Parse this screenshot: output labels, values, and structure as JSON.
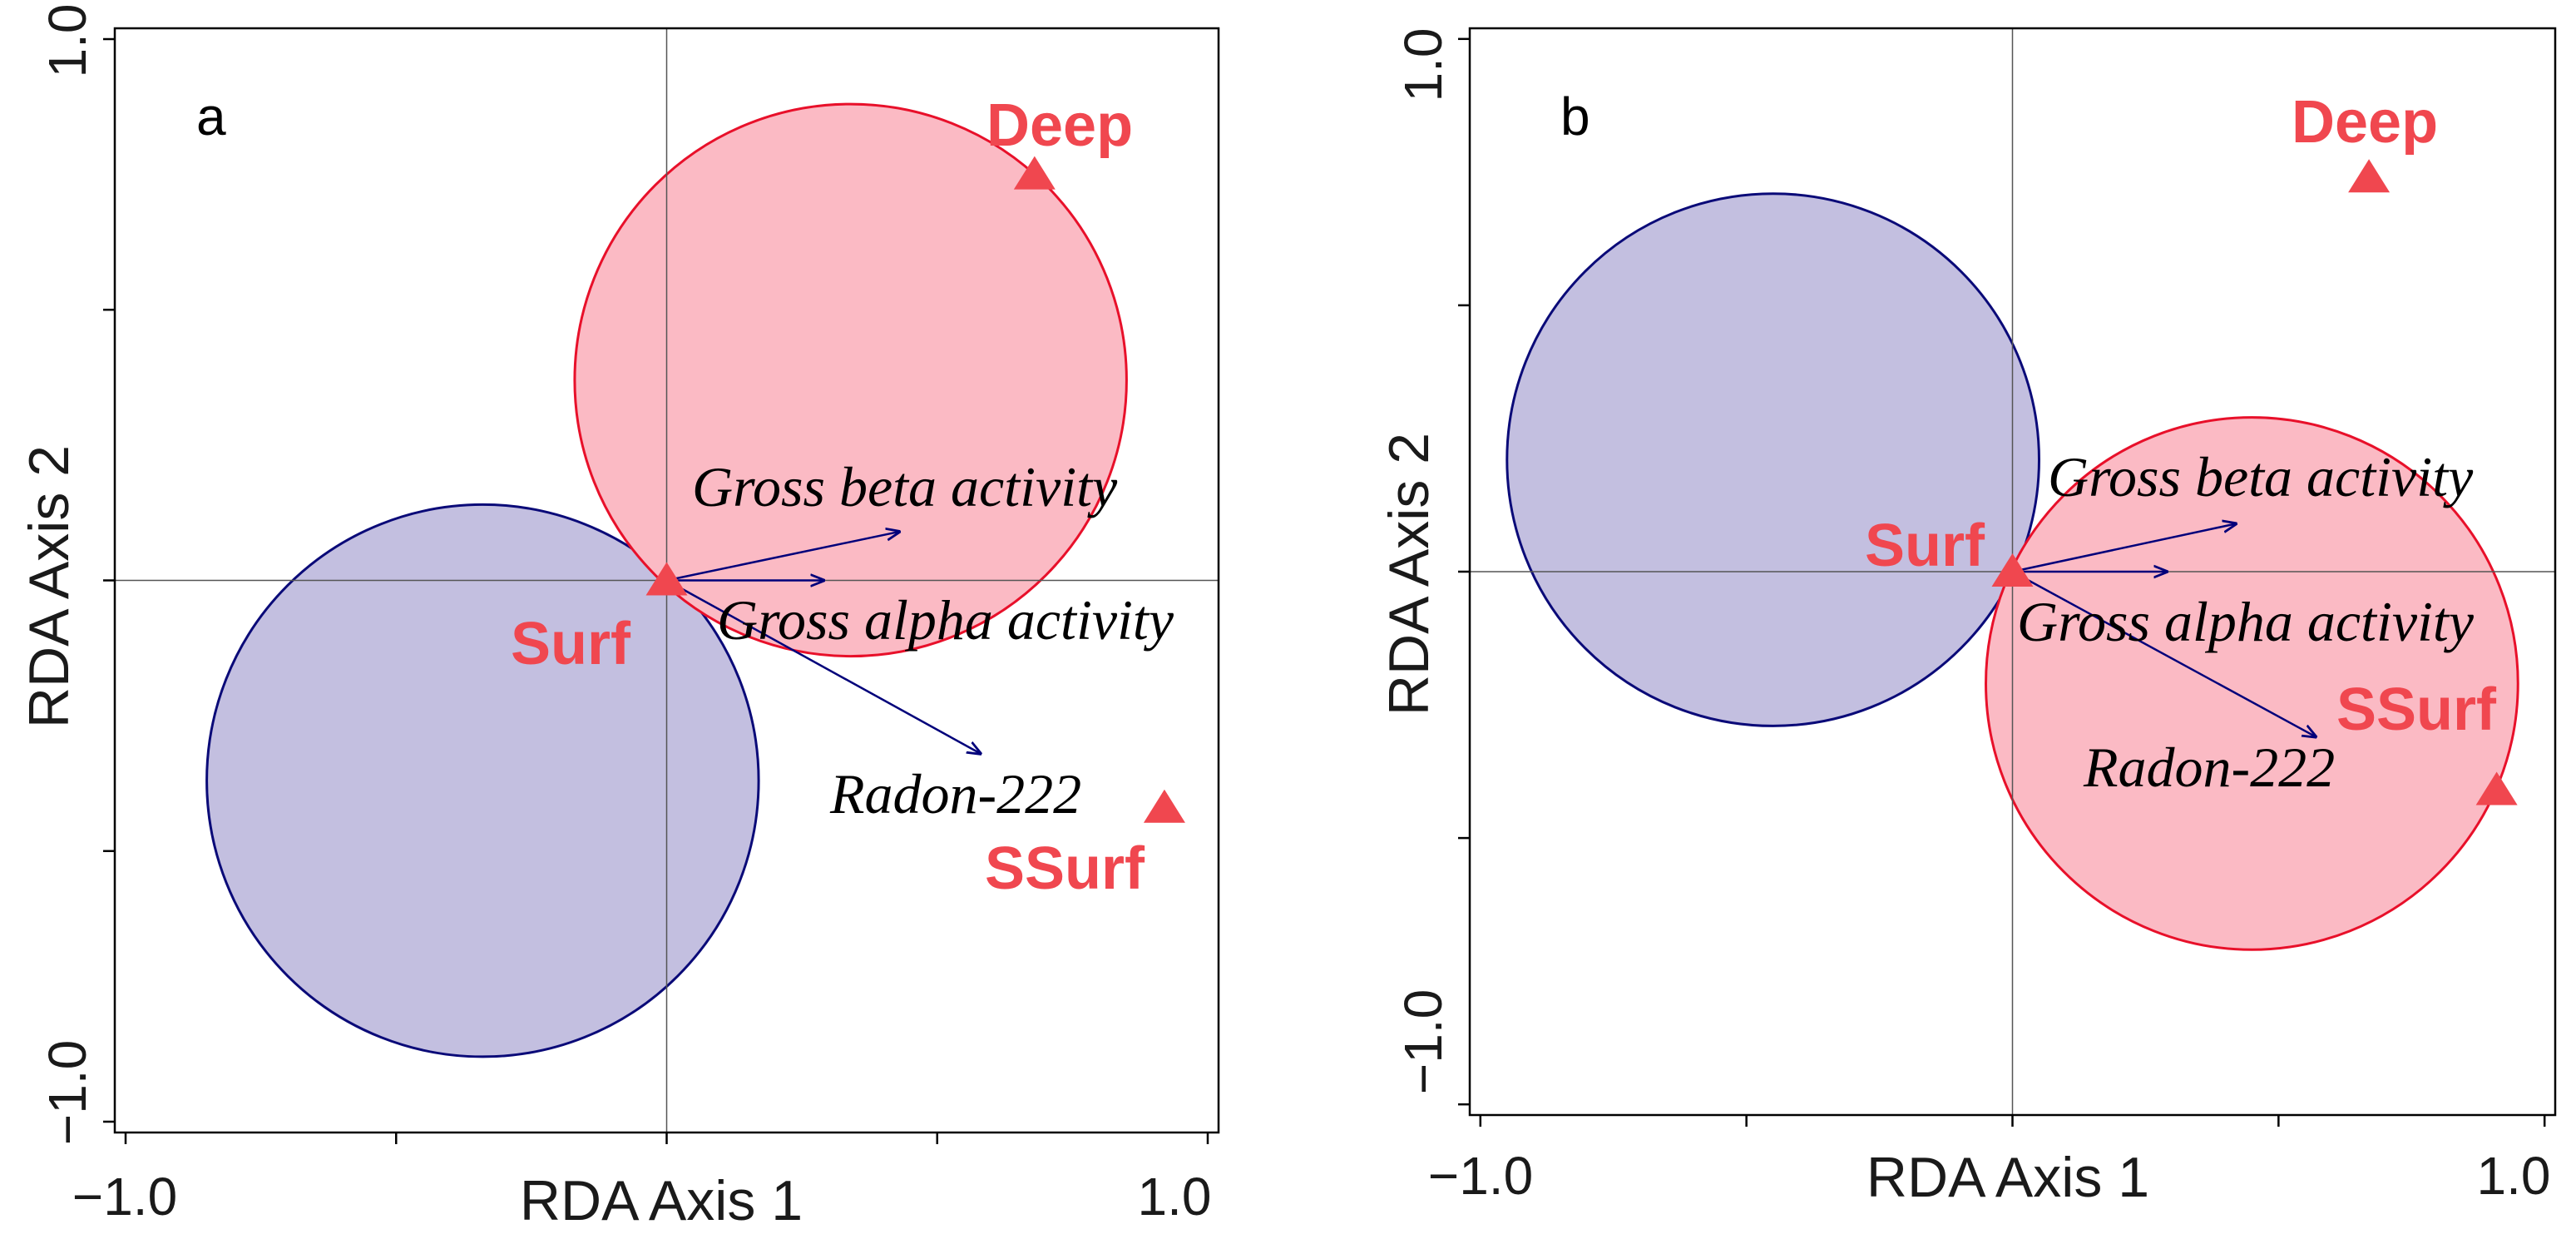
{
  "colors": {
    "site": "#f0474f",
    "arrow": "#00007a",
    "blue_fill": "#c3bfe0",
    "blue_stroke": "#0a0a78",
    "red_fill": "#fbbac4",
    "red_stroke": "#e8102a",
    "frame": "#000000",
    "crosshair": "#555555"
  },
  "chart_data": [
    {
      "type": "scatter",
      "panel_label": "a",
      "xlabel": "RDA Axis 1",
      "ylabel": "RDA Axis 2",
      "xlim": [
        -1.02,
        1.02
      ],
      "ylim": [
        -1.02,
        1.02
      ],
      "xtick_labels": [
        "−1.0",
        "1.0"
      ],
      "ytick_labels": [
        "1.0",
        "−1.0"
      ],
      "sites": [
        {
          "label": "Deep",
          "x": 0.68,
          "y": 0.75
        },
        {
          "label": "Surf",
          "x": 0.0,
          "y": 0.0
        },
        {
          "label": "SSurf",
          "x": 0.92,
          "y": -0.42
        }
      ],
      "variables": [
        {
          "label": "Gross beta activity",
          "x": 0.43,
          "y": 0.09
        },
        {
          "label": "Gross alpha activity",
          "x": 0.29,
          "y": 0.0
        },
        {
          "label": "Radon-222",
          "x": 0.58,
          "y": -0.32
        }
      ],
      "circles": [
        {
          "group": "blue",
          "cx": -0.34,
          "cy": -0.37,
          "r": 0.51
        },
        {
          "group": "red",
          "cx": 0.34,
          "cy": 0.37,
          "r": 0.51
        }
      ]
    },
    {
      "type": "scatter",
      "panel_label": "b",
      "xlabel": "RDA Axis 1",
      "ylabel": "RDA Axis 2",
      "xlim": [
        -1.02,
        1.02
      ],
      "ylim": [
        -1.02,
        1.02
      ],
      "xtick_labels": [
        "−1.0",
        "1.0"
      ],
      "ytick_labels": [
        "1.0",
        "−1.0"
      ],
      "sites": [
        {
          "label": "Deep",
          "x": 0.67,
          "y": 0.74
        },
        {
          "label": "Surf",
          "x": 0.0,
          "y": 0.0
        },
        {
          "label": "SSurf",
          "x": 0.91,
          "y": -0.41
        }
      ],
      "variables": [
        {
          "label": "Gross beta activity",
          "x": 0.42,
          "y": 0.09
        },
        {
          "label": "Gross alpha activity",
          "x": 0.29,
          "y": 0.0
        },
        {
          "label": "Radon-222",
          "x": 0.57,
          "y": -0.31
        }
      ],
      "circles": [
        {
          "group": "blue",
          "cx": -0.45,
          "cy": 0.21,
          "r": 0.5
        },
        {
          "group": "red",
          "cx": 0.45,
          "cy": -0.21,
          "r": 0.5
        }
      ]
    }
  ]
}
